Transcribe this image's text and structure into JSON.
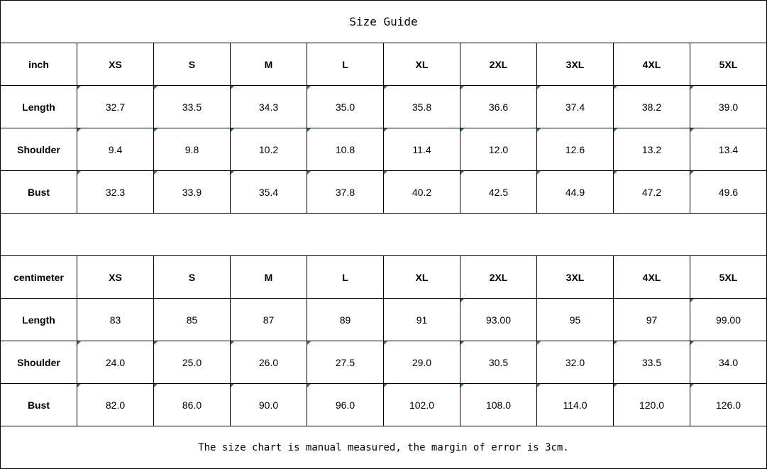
{
  "title": "Size Guide",
  "tables": [
    {
      "unit": "inch",
      "sizes": [
        "XS",
        "S",
        "M",
        "L",
        "XL",
        "2XL",
        "3XL",
        "4XL",
        "5XL"
      ],
      "rows": [
        {
          "label": "Length",
          "values": [
            "32.7",
            "33.5",
            "34.3",
            "35.0",
            "35.8",
            "36.6",
            "37.4",
            "38.2",
            "39.0"
          ],
          "text_flags": [
            true,
            true,
            true,
            true,
            true,
            true,
            true,
            true,
            true
          ]
        },
        {
          "label": "Shoulder",
          "values": [
            "9.4",
            "9.8",
            "10.2",
            "10.8",
            "11.4",
            "12.0",
            "12.6",
            "13.2",
            "13.4"
          ],
          "text_flags": [
            true,
            true,
            true,
            true,
            true,
            true,
            true,
            true,
            true
          ]
        },
        {
          "label": "Bust",
          "values": [
            "32.3",
            "33.9",
            "35.4",
            "37.8",
            "40.2",
            "42.5",
            "44.9",
            "47.2",
            "49.6"
          ],
          "text_flags": [
            true,
            true,
            true,
            true,
            true,
            true,
            true,
            true,
            true
          ]
        }
      ]
    },
    {
      "unit": "centimeter",
      "sizes": [
        "XS",
        "S",
        "M",
        "L",
        "XL",
        "2XL",
        "3XL",
        "4XL",
        "5XL"
      ],
      "rows": [
        {
          "label": "Length",
          "values": [
            "83",
            "85",
            "87",
            "89",
            "91",
            "93.00",
            "95",
            "97",
            "99.00"
          ],
          "text_flags": [
            false,
            false,
            false,
            false,
            false,
            true,
            false,
            false,
            true
          ]
        },
        {
          "label": "Shoulder",
          "values": [
            "24.0",
            "25.0",
            "26.0",
            "27.5",
            "29.0",
            "30.5",
            "32.0",
            "33.5",
            "34.0"
          ],
          "text_flags": [
            true,
            true,
            true,
            true,
            true,
            true,
            true,
            true,
            true
          ]
        },
        {
          "label": "Bust",
          "values": [
            "82.0",
            "86.0",
            "90.0",
            "96.0",
            "102.0",
            "108.0",
            "114.0",
            "120.0",
            "126.0"
          ],
          "text_flags": [
            true,
            true,
            true,
            true,
            true,
            true,
            true,
            true,
            true
          ]
        }
      ]
    }
  ],
  "footer": "The size chart is manual measured, the margin of error is 3cm.",
  "colors": {
    "indicator": "#1a8a1a",
    "grid": "#000000"
  }
}
